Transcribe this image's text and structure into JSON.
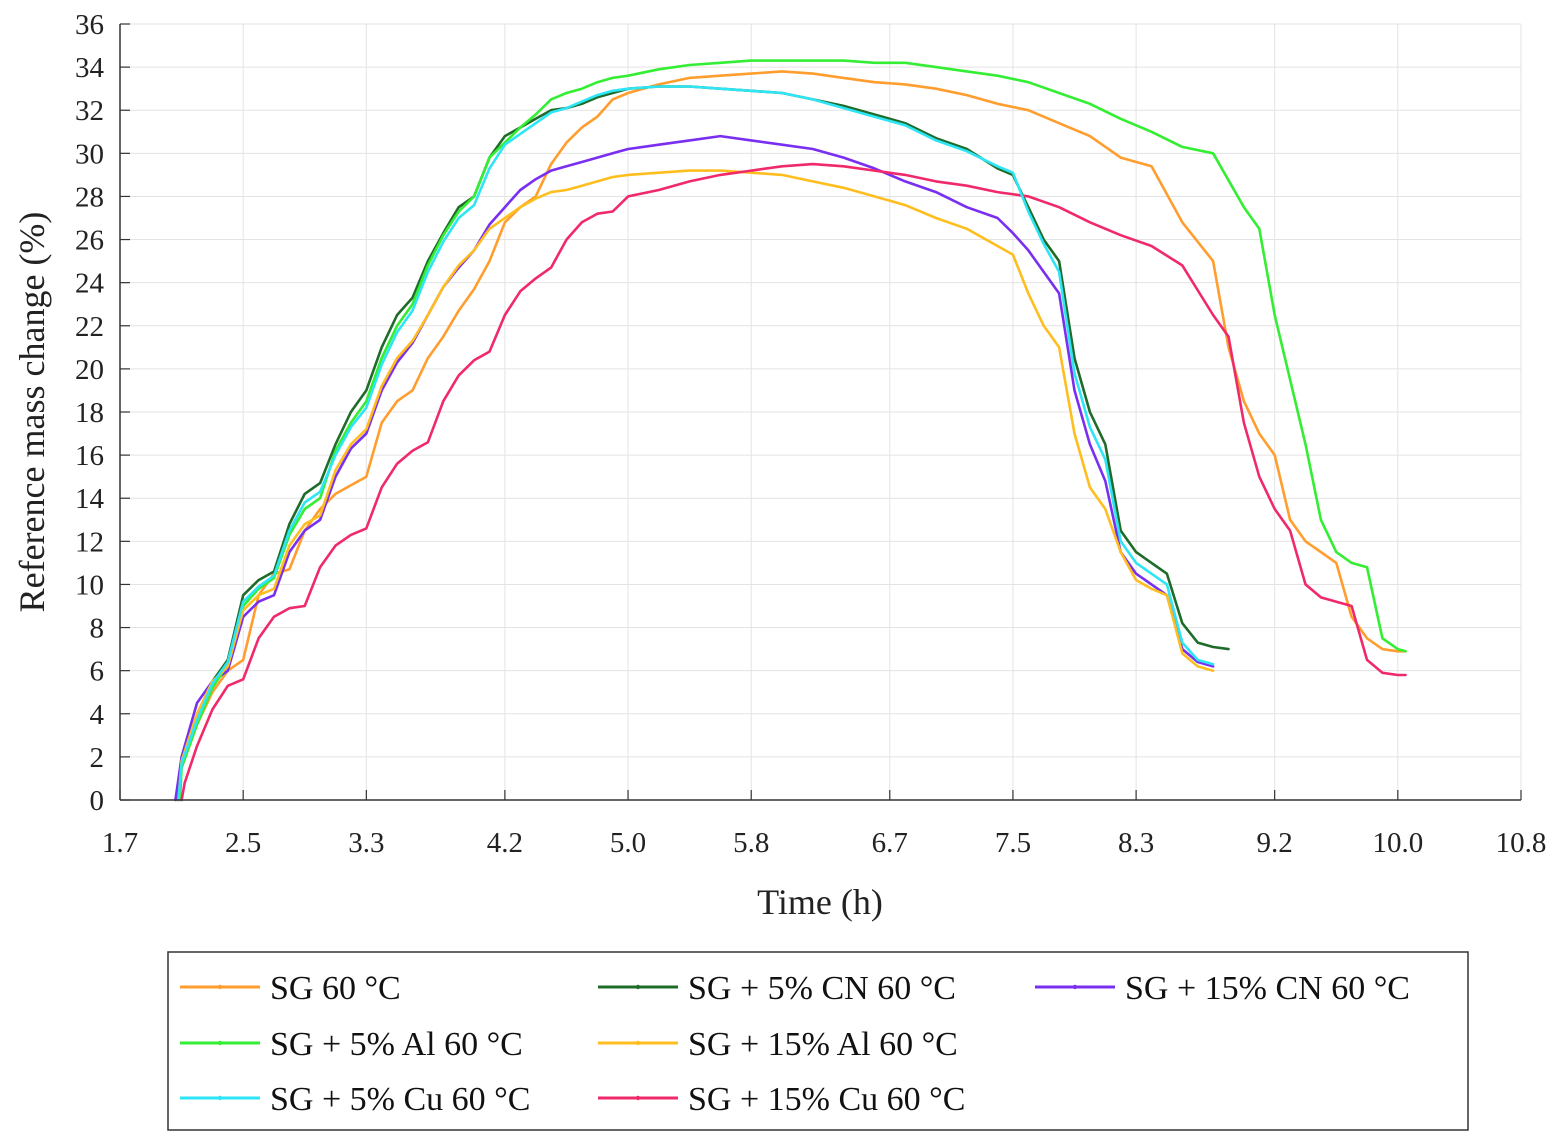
{
  "chart_data": {
    "type": "line",
    "title": "",
    "xlabel": "Time (h)",
    "ylabel": "Reference mass change (%)",
    "xlim": [
      1.7,
      10.8
    ],
    "ylim": [
      0,
      36
    ],
    "grid": true,
    "x_ticks": [
      1.7,
      2.5,
      3.3,
      4.2,
      5.0,
      5.8,
      6.7,
      7.5,
      8.3,
      9.2,
      10.0,
      10.8
    ],
    "x_tick_labels": [
      "1.7",
      "2.5",
      "3.3",
      "4.2",
      "5.0",
      "5.8",
      "6.7",
      "7.5",
      "8.3",
      "9.2",
      "10.0",
      "10.8"
    ],
    "y_ticks": [
      0,
      2,
      4,
      6,
      8,
      10,
      12,
      14,
      16,
      18,
      20,
      22,
      24,
      26,
      28,
      30,
      32,
      34,
      36
    ],
    "y_tick_labels": [
      "0",
      "2",
      "4",
      "6",
      "8",
      "10",
      "12",
      "14",
      "16",
      "18",
      "20",
      "22",
      "24",
      "26",
      "28",
      "30",
      "32",
      "34",
      "36"
    ],
    "legend_position": "bottom",
    "series": [
      {
        "name": "SG 60 °C",
        "color": "#ff9d2e",
        "x": [
          2.07,
          2.1,
          2.2,
          2.3,
          2.4,
          2.5,
          2.6,
          2.7,
          2.8,
          2.9,
          3.0,
          3.1,
          3.2,
          3.3,
          3.4,
          3.5,
          3.6,
          3.7,
          3.8,
          3.9,
          4.0,
          4.1,
          4.2,
          4.3,
          4.4,
          4.5,
          4.6,
          4.7,
          4.8,
          4.9,
          5.0,
          5.2,
          5.4,
          5.6,
          5.8,
          6.0,
          6.2,
          6.4,
          6.6,
          6.8,
          7.0,
          7.2,
          7.4,
          7.6,
          7.8,
          8.0,
          8.2,
          8.4,
          8.6,
          8.8,
          8.9,
          9.0,
          9.1,
          9.2,
          9.3,
          9.4,
          9.5,
          9.6,
          9.7,
          9.8,
          9.9,
          10.0,
          10.05
        ],
        "y": [
          0.0,
          1.5,
          3.5,
          5.0,
          6.0,
          6.5,
          9.5,
          10.5,
          10.7,
          12.5,
          13.5,
          14.2,
          14.6,
          15.0,
          17.5,
          18.5,
          19.0,
          20.5,
          21.5,
          22.7,
          23.7,
          25.0,
          26.8,
          27.5,
          28.0,
          29.5,
          30.5,
          31.2,
          31.7,
          32.5,
          32.8,
          33.2,
          33.5,
          33.6,
          33.7,
          33.8,
          33.7,
          33.5,
          33.3,
          33.2,
          33.0,
          32.7,
          32.3,
          32.0,
          31.4,
          30.8,
          29.8,
          29.4,
          26.8,
          25.0,
          21.0,
          18.5,
          17.0,
          16.0,
          13.0,
          12.0,
          11.5,
          11.0,
          8.5,
          7.5,
          7.0,
          6.9,
          6.9
        ]
      },
      {
        "name": "SG + 5% CN 60 °C",
        "color": "#1e6b2a",
        "x": [
          2.08,
          2.1,
          2.2,
          2.3,
          2.4,
          2.5,
          2.6,
          2.7,
          2.8,
          2.9,
          3.0,
          3.1,
          3.2,
          3.3,
          3.4,
          3.5,
          3.6,
          3.7,
          3.8,
          3.9,
          4.0,
          4.1,
          4.2,
          4.3,
          4.4,
          4.5,
          4.6,
          4.7,
          4.8,
          4.9,
          5.0,
          5.2,
          5.4,
          5.6,
          5.8,
          6.0,
          6.2,
          6.4,
          6.6,
          6.8,
          7.0,
          7.2,
          7.4,
          7.5,
          7.6,
          7.7,
          7.8,
          7.9,
          8.0,
          8.1,
          8.2,
          8.3,
          8.4,
          8.5,
          8.6,
          8.7,
          8.8,
          8.9
        ],
        "y": [
          0.0,
          1.8,
          3.8,
          5.5,
          6.5,
          9.5,
          10.2,
          10.6,
          12.8,
          14.2,
          14.7,
          16.5,
          18.0,
          19.0,
          21.0,
          22.5,
          23.3,
          25.0,
          26.3,
          27.5,
          28.0,
          29.8,
          30.8,
          31.2,
          31.6,
          32.0,
          32.1,
          32.3,
          32.6,
          32.8,
          33.0,
          33.1,
          33.1,
          33.0,
          32.9,
          32.8,
          32.5,
          32.2,
          31.8,
          31.4,
          30.7,
          30.2,
          29.3,
          29.0,
          27.5,
          26.0,
          25.0,
          20.5,
          18.0,
          16.5,
          12.5,
          11.5,
          11.0,
          10.5,
          8.2,
          7.3,
          7.1,
          7.0
        ]
      },
      {
        "name": "SG + 15% CN 60 °C",
        "color": "#7a2ff0",
        "x": [
          2.06,
          2.1,
          2.2,
          2.3,
          2.4,
          2.5,
          2.6,
          2.7,
          2.8,
          2.9,
          3.0,
          3.1,
          3.2,
          3.3,
          3.4,
          3.5,
          3.6,
          3.7,
          3.8,
          3.9,
          4.0,
          4.1,
          4.2,
          4.3,
          4.4,
          4.5,
          4.6,
          4.7,
          4.8,
          4.9,
          5.0,
          5.2,
          5.4,
          5.6,
          5.8,
          6.0,
          6.2,
          6.4,
          6.6,
          6.8,
          7.0,
          7.2,
          7.4,
          7.5,
          7.6,
          7.7,
          7.8,
          7.9,
          8.0,
          8.1,
          8.2,
          8.3,
          8.4,
          8.5,
          8.6,
          8.7,
          8.8
        ],
        "y": [
          0.0,
          2.0,
          4.5,
          5.5,
          6.0,
          8.5,
          9.2,
          9.5,
          11.5,
          12.5,
          13.0,
          15.0,
          16.3,
          17.0,
          19.0,
          20.3,
          21.2,
          22.5,
          23.8,
          24.7,
          25.5,
          26.7,
          27.5,
          28.3,
          28.8,
          29.2,
          29.4,
          29.6,
          29.8,
          30.0,
          30.2,
          30.4,
          30.6,
          30.8,
          30.6,
          30.4,
          30.2,
          29.8,
          29.3,
          28.7,
          28.2,
          27.5,
          27.0,
          26.3,
          25.5,
          24.5,
          23.5,
          19.0,
          16.5,
          14.8,
          11.5,
          10.5,
          10.0,
          9.5,
          7.0,
          6.4,
          6.2
        ]
      },
      {
        "name": "SG + 5% Al 60 °C",
        "color": "#33ee33",
        "x": [
          2.09,
          2.1,
          2.2,
          2.3,
          2.4,
          2.5,
          2.6,
          2.7,
          2.8,
          2.9,
          3.0,
          3.1,
          3.2,
          3.3,
          3.4,
          3.5,
          3.6,
          3.7,
          3.8,
          3.9,
          4.0,
          4.1,
          4.2,
          4.3,
          4.4,
          4.5,
          4.6,
          4.7,
          4.8,
          4.9,
          5.0,
          5.2,
          5.4,
          5.6,
          5.8,
          6.0,
          6.2,
          6.4,
          6.6,
          6.8,
          7.0,
          7.2,
          7.4,
          7.6,
          7.8,
          8.0,
          8.2,
          8.4,
          8.6,
          8.8,
          9.0,
          9.1,
          9.2,
          9.3,
          9.4,
          9.5,
          9.6,
          9.7,
          9.8,
          9.9,
          10.0,
          10.05
        ],
        "y": [
          0.0,
          1.5,
          3.5,
          5.2,
          6.3,
          9.0,
          9.8,
          10.3,
          12.3,
          13.5,
          14.0,
          16.2,
          17.5,
          18.5,
          20.5,
          22.0,
          23.0,
          24.8,
          26.2,
          27.3,
          28.0,
          29.8,
          30.5,
          31.2,
          31.8,
          32.5,
          32.8,
          33.0,
          33.3,
          33.5,
          33.6,
          33.9,
          34.1,
          34.2,
          34.3,
          34.3,
          34.3,
          34.3,
          34.2,
          34.2,
          34.0,
          33.8,
          33.6,
          33.3,
          32.8,
          32.3,
          31.6,
          31.0,
          30.3,
          30.0,
          27.5,
          26.5,
          22.5,
          19.5,
          16.5,
          13.0,
          11.5,
          11.0,
          10.8,
          7.5,
          7.0,
          6.9
        ]
      },
      {
        "name": "SG + 15% Al 60 °C",
        "color": "#ffbe1f",
        "x": [
          2.08,
          2.1,
          2.2,
          2.3,
          2.4,
          2.5,
          2.6,
          2.7,
          2.8,
          2.9,
          3.0,
          3.1,
          3.2,
          3.3,
          3.4,
          3.5,
          3.6,
          3.7,
          3.8,
          3.9,
          4.0,
          4.1,
          4.2,
          4.3,
          4.4,
          4.5,
          4.6,
          4.7,
          4.8,
          4.9,
          5.0,
          5.2,
          5.4,
          5.6,
          5.8,
          6.0,
          6.2,
          6.4,
          6.6,
          6.8,
          7.0,
          7.2,
          7.4,
          7.5,
          7.6,
          7.7,
          7.8,
          7.9,
          8.0,
          8.1,
          8.2,
          8.3,
          8.4,
          8.5,
          8.6,
          8.7,
          8.8
        ],
        "y": [
          0.0,
          1.8,
          4.0,
          5.5,
          6.2,
          8.8,
          9.5,
          9.8,
          11.8,
          12.8,
          13.2,
          15.3,
          16.5,
          17.2,
          19.2,
          20.5,
          21.3,
          22.5,
          23.8,
          24.8,
          25.5,
          26.5,
          27.0,
          27.5,
          27.9,
          28.2,
          28.3,
          28.5,
          28.7,
          28.9,
          29.0,
          29.1,
          29.2,
          29.2,
          29.1,
          29.0,
          28.7,
          28.4,
          28.0,
          27.6,
          27.0,
          26.5,
          25.7,
          25.3,
          23.5,
          22.0,
          21.0,
          17.0,
          14.5,
          13.5,
          11.5,
          10.2,
          9.8,
          9.5,
          6.8,
          6.2,
          6.0
        ]
      },
      {
        "name": "SG + 15% Cu 60 °C",
        "color": "#f02a6a",
        "x": [
          2.1,
          2.12,
          2.2,
          2.3,
          2.4,
          2.5,
          2.6,
          2.7,
          2.8,
          2.9,
          3.0,
          3.1,
          3.2,
          3.3,
          3.4,
          3.5,
          3.6,
          3.7,
          3.8,
          3.9,
          4.0,
          4.1,
          4.2,
          4.3,
          4.4,
          4.5,
          4.6,
          4.7,
          4.8,
          4.9,
          5.0,
          5.2,
          5.4,
          5.6,
          5.8,
          6.0,
          6.2,
          6.4,
          6.6,
          6.8,
          7.0,
          7.2,
          7.4,
          7.6,
          7.8,
          8.0,
          8.2,
          8.4,
          8.6,
          8.8,
          8.9,
          9.0,
          9.1,
          9.2,
          9.3,
          9.4,
          9.5,
          9.6,
          9.7,
          9.8,
          9.9,
          10.0,
          10.05
        ],
        "y": [
          0.0,
          0.8,
          2.5,
          4.2,
          5.3,
          5.6,
          7.5,
          8.5,
          8.9,
          9.0,
          10.8,
          11.8,
          12.3,
          12.6,
          14.5,
          15.6,
          16.2,
          16.6,
          18.5,
          19.7,
          20.4,
          20.8,
          22.5,
          23.6,
          24.2,
          24.7,
          26.0,
          26.8,
          27.2,
          27.3,
          28.0,
          28.3,
          28.7,
          29.0,
          29.2,
          29.4,
          29.5,
          29.4,
          29.2,
          29.0,
          28.7,
          28.5,
          28.2,
          28.0,
          27.5,
          26.8,
          26.2,
          25.7,
          24.8,
          22.5,
          21.5,
          17.5,
          15.0,
          13.5,
          12.5,
          10.0,
          9.4,
          9.2,
          9.0,
          6.5,
          5.9,
          5.8,
          5.8
        ]
      },
      {
        "name": "SG + 5% Cu 60 °C",
        "color": "#2ee5f5",
        "x": [
          2.08,
          2.1,
          2.2,
          2.3,
          2.4,
          2.5,
          2.6,
          2.7,
          2.8,
          2.9,
          3.0,
          3.1,
          3.2,
          3.3,
          3.4,
          3.5,
          3.6,
          3.7,
          3.8,
          3.9,
          4.0,
          4.1,
          4.2,
          4.3,
          4.4,
          4.5,
          4.6,
          4.7,
          4.8,
          4.9,
          5.0,
          5.2,
          5.4,
          5.6,
          5.8,
          6.0,
          6.2,
          6.4,
          6.6,
          6.8,
          7.0,
          7.2,
          7.4,
          7.5,
          7.6,
          7.7,
          7.8,
          7.9,
          8.0,
          8.1,
          8.2,
          8.3,
          8.4,
          8.5,
          8.6,
          8.7,
          8.8
        ],
        "y": [
          0.0,
          1.7,
          3.7,
          5.4,
          6.4,
          9.2,
          9.9,
          10.4,
          12.5,
          13.8,
          14.3,
          16.0,
          17.3,
          18.2,
          20.2,
          21.7,
          22.7,
          24.5,
          25.9,
          27.0,
          27.6,
          29.3,
          30.4,
          30.9,
          31.4,
          31.9,
          32.1,
          32.4,
          32.7,
          32.9,
          33.0,
          33.1,
          33.1,
          33.0,
          32.9,
          32.8,
          32.5,
          32.1,
          31.7,
          31.3,
          30.6,
          30.1,
          29.4,
          29.1,
          27.3,
          25.8,
          24.5,
          19.8,
          17.3,
          15.8,
          12.0,
          11.0,
          10.5,
          10.0,
          7.3,
          6.5,
          6.3
        ]
      }
    ],
    "legend_items": [
      "SG 60 °C",
      "SG + 5% CN 60 °C",
      "SG + 15% CN 60 °C",
      "SG + 5% Al 60 °C",
      "SG + 15% Al 60 °C",
      "SG + 5% Cu 60 °C",
      "SG + 15% Cu 60 °C"
    ]
  }
}
